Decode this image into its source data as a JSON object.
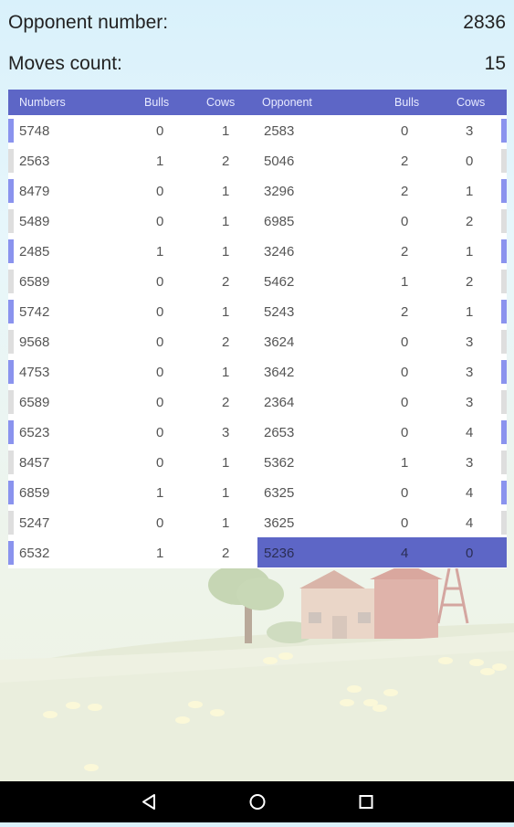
{
  "opponent_number": {
    "label": "Opponent number:",
    "value": "2836"
  },
  "moves_count": {
    "label": "Moves count:",
    "value": "15"
  },
  "table": {
    "headers": [
      "Numbers",
      "Bulls",
      "Cows",
      "Opponent",
      "Bulls",
      "Cows"
    ],
    "player_rows": [
      {
        "number": "5748",
        "bulls": "0",
        "cows": "1"
      },
      {
        "number": "2563",
        "bulls": "1",
        "cows": "2"
      },
      {
        "number": "8479",
        "bulls": "0",
        "cows": "1"
      },
      {
        "number": "5489",
        "bulls": "0",
        "cows": "1"
      },
      {
        "number": "2485",
        "bulls": "1",
        "cows": "1"
      },
      {
        "number": "6589",
        "bulls": "0",
        "cows": "2"
      },
      {
        "number": "5742",
        "bulls": "0",
        "cows": "1"
      },
      {
        "number": "9568",
        "bulls": "0",
        "cows": "2"
      },
      {
        "number": "4753",
        "bulls": "0",
        "cows": "1"
      },
      {
        "number": "6589",
        "bulls": "0",
        "cows": "2"
      },
      {
        "number": "6523",
        "bulls": "0",
        "cows": "3"
      },
      {
        "number": "8457",
        "bulls": "0",
        "cows": "1"
      },
      {
        "number": "6859",
        "bulls": "1",
        "cows": "1"
      },
      {
        "number": "5247",
        "bulls": "0",
        "cows": "1"
      },
      {
        "number": "6532",
        "bulls": "1",
        "cows": "2"
      }
    ],
    "opponent_rows": [
      {
        "number": "2583",
        "bulls": "0",
        "cows": "3"
      },
      {
        "number": "5046",
        "bulls": "2",
        "cows": "0"
      },
      {
        "number": "3296",
        "bulls": "2",
        "cows": "1"
      },
      {
        "number": "6985",
        "bulls": "0",
        "cows": "2"
      },
      {
        "number": "3246",
        "bulls": "2",
        "cows": "1"
      },
      {
        "number": "5462",
        "bulls": "1",
        "cows": "2"
      },
      {
        "number": "5243",
        "bulls": "2",
        "cows": "1"
      },
      {
        "number": "3624",
        "bulls": "0",
        "cows": "3"
      },
      {
        "number": "3642",
        "bulls": "0",
        "cows": "3"
      },
      {
        "number": "2364",
        "bulls": "0",
        "cows": "3"
      },
      {
        "number": "2653",
        "bulls": "0",
        "cows": "4"
      },
      {
        "number": "5362",
        "bulls": "1",
        "cows": "3"
      },
      {
        "number": "6325",
        "bulls": "0",
        "cows": "4"
      },
      {
        "number": "3625",
        "bulls": "0",
        "cows": "4"
      },
      {
        "number": "5236",
        "bulls": "4",
        "cows": "0"
      }
    ],
    "winning_row_index": 14
  },
  "nav": {
    "back_icon": "back-triangle-icon",
    "home_icon": "home-circle-icon",
    "recent_icon": "recent-square-icon"
  },
  "colors": {
    "header_bg": "#5d66c6",
    "accent_marker": "#8a93ee",
    "plain_marker": "#dedede",
    "nav_bg": "#000000"
  }
}
